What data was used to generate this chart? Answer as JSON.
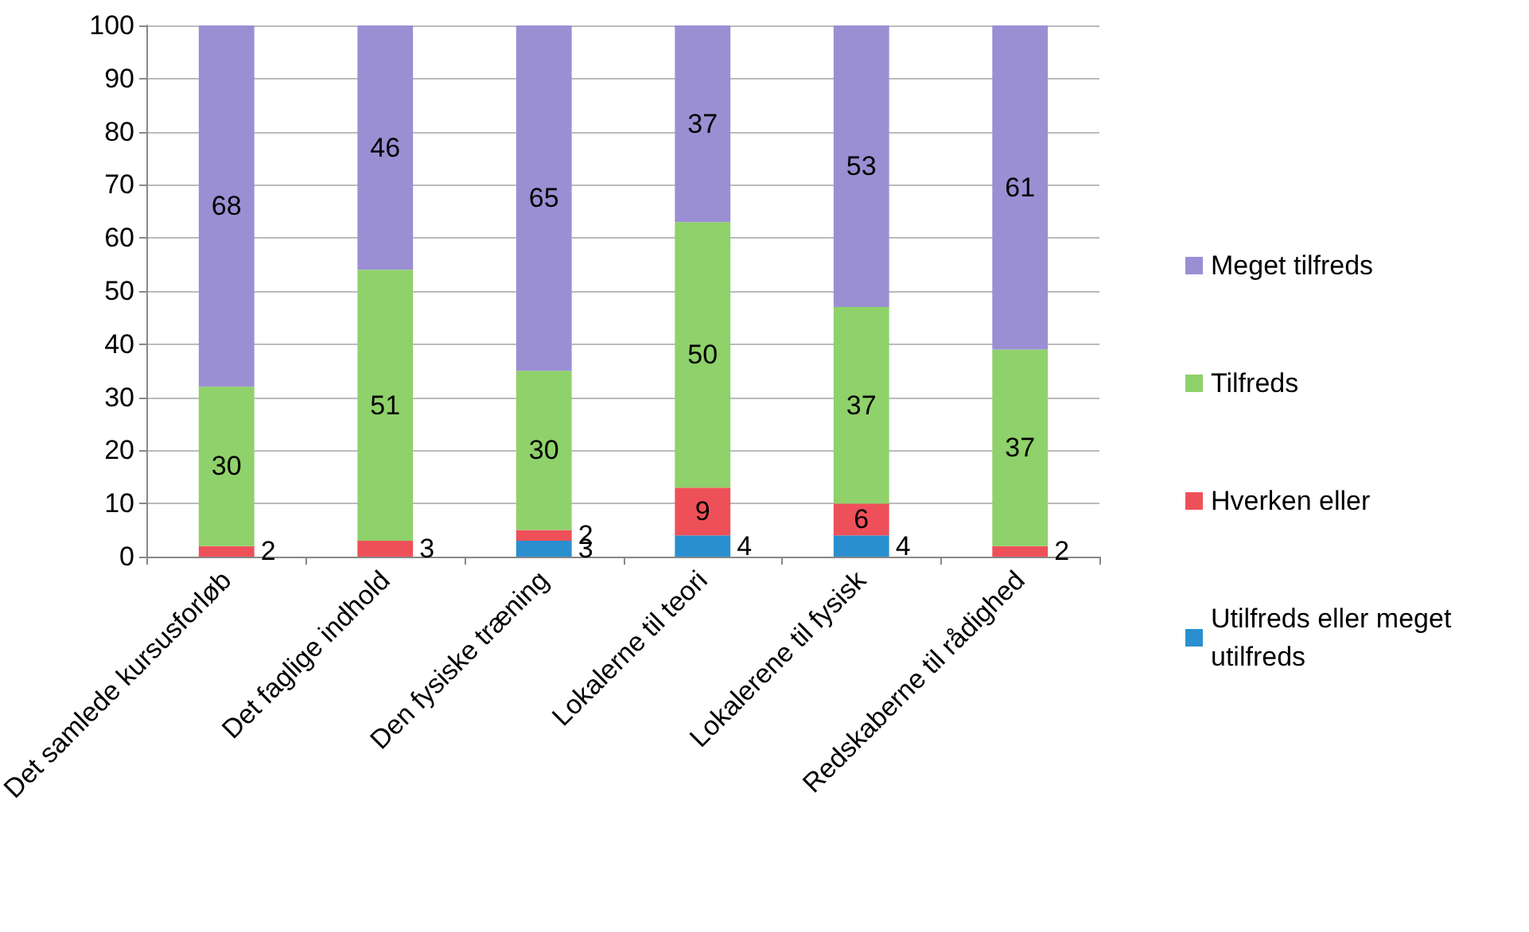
{
  "chart_data": {
    "type": "bar",
    "stacked": true,
    "categories": [
      "Det samlede kursusforløb",
      "Det faglige indhold",
      "Den fysiske træning",
      "Lokalerne til teori",
      "Lokalerene til fysisk",
      "Redskaberne til rådighed"
    ],
    "series": [
      {
        "name": "Utilfreds eller meget utilfreds",
        "color": "#2a8fcf",
        "values": [
          0,
          0,
          3,
          4,
          4,
          0
        ],
        "value_labels": [
          null,
          null,
          "3",
          "4",
          "4",
          null
        ]
      },
      {
        "name": "Hverken eller",
        "color": "#ee5059",
        "values": [
          2,
          3,
          2,
          9,
          6,
          2
        ],
        "value_labels": [
          "2",
          "3",
          "2",
          "9",
          "6",
          "2"
        ]
      },
      {
        "name": "Tilfreds",
        "color": "#8fd16a",
        "values": [
          30,
          51,
          30,
          50,
          37,
          37
        ],
        "value_labels": [
          "30",
          "51",
          "30",
          "50",
          "37",
          "37"
        ]
      },
      {
        "name": "Meget tilfreds",
        "color": "#9a8fd3",
        "values": [
          68,
          46,
          65,
          37,
          53,
          61
        ],
        "value_labels": [
          "68",
          "46",
          "65",
          "37",
          "53",
          "61"
        ]
      }
    ],
    "ylim": [
      0,
      100
    ],
    "yticks": [
      0,
      10,
      20,
      30,
      40,
      50,
      60,
      70,
      80,
      90,
      100
    ],
    "grid": "y",
    "legend": "right"
  }
}
